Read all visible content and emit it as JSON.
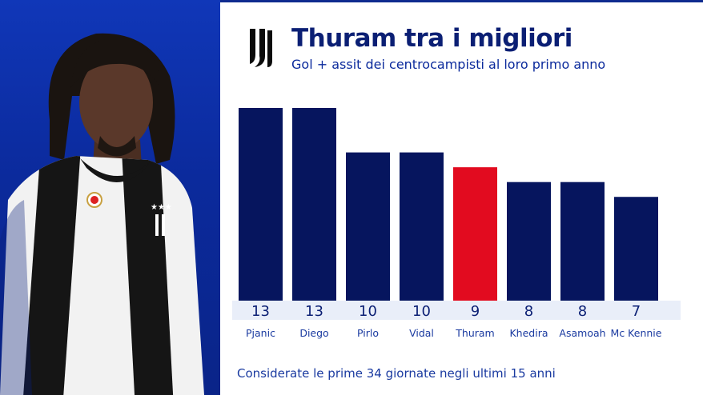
{
  "header": {
    "title": "Thuram tra i migliori",
    "subtitle": "Gol + assit dei centrocampisti al loro primo anno"
  },
  "footnote": "Considerate le prime 34 giornate negli ultimi 15 anni",
  "colors": {
    "bar_default": "#06155e",
    "bar_highlight": "#e20b1f",
    "value_band": "#e9eef9",
    "value_text": "#0b1f74",
    "label_text": "#1a3aa0"
  },
  "icons": [
    "juventus-logo",
    "player-photo"
  ],
  "chart_data": {
    "type": "bar",
    "title": "Thuram tra i migliori",
    "categories": [
      "Pjanic",
      "Diego",
      "Pirlo",
      "Vidal",
      "Thuram",
      "Khedira",
      "Asamoah",
      "Mc Kennie"
    ],
    "values": [
      13,
      13,
      10,
      10,
      9,
      8,
      8,
      7
    ],
    "highlight": "Thuram",
    "ylim": [
      0,
      13
    ],
    "grid": false,
    "legend": "none"
  }
}
